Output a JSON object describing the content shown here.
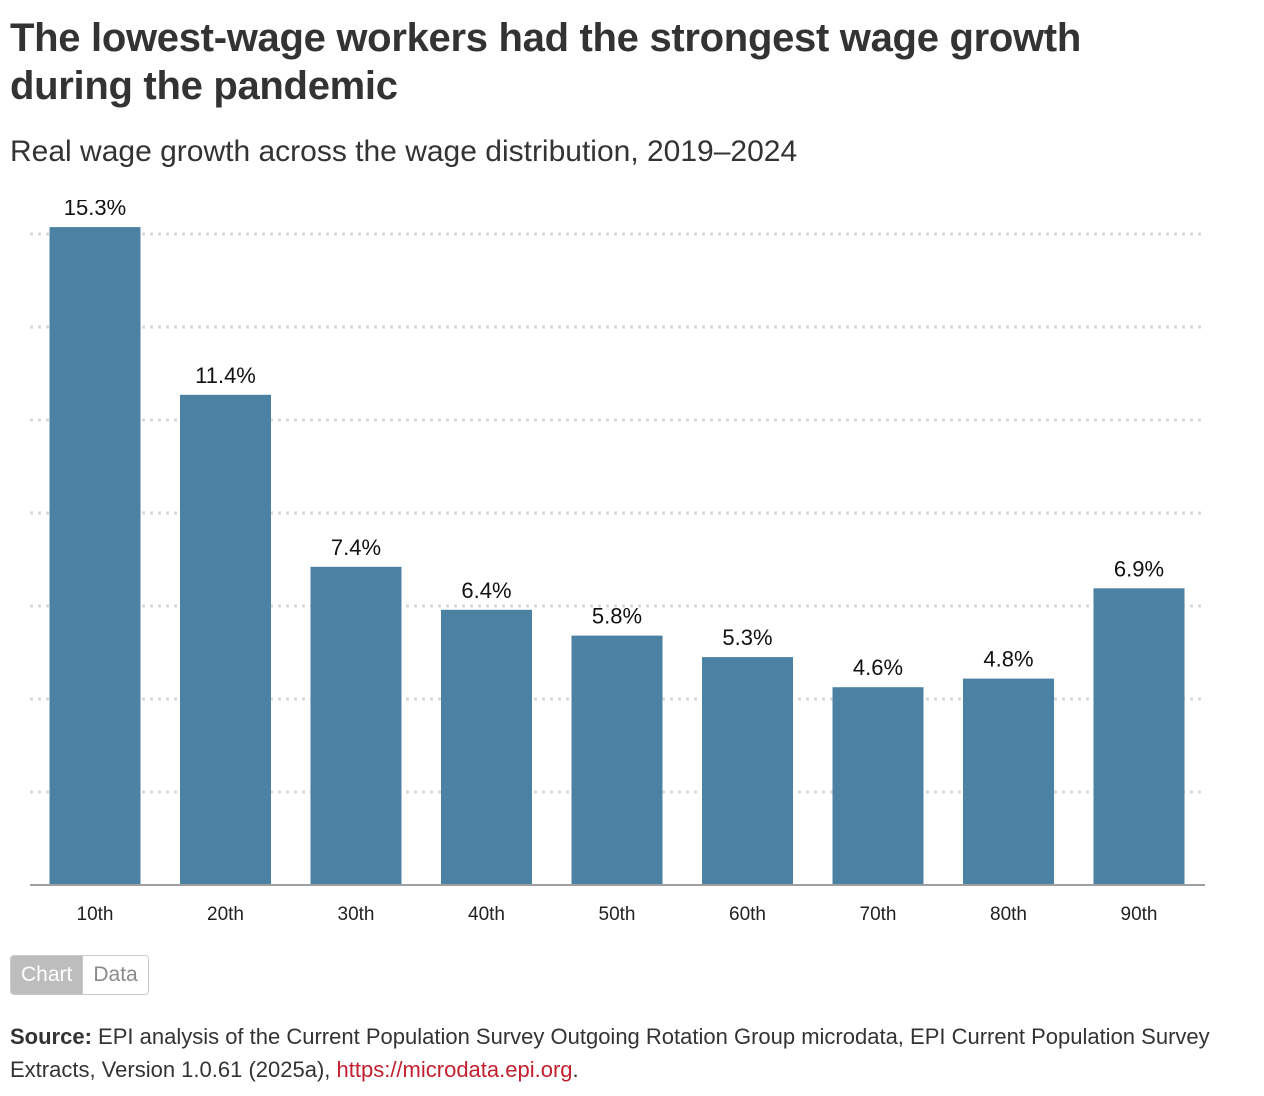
{
  "header": {
    "title": "The lowest-wage workers had the strongest wage growth during the pandemic",
    "subtitle": "Real wage growth across the wage distribution, 2019–2024"
  },
  "colors": {
    "bar": "#4b81a3",
    "gridline": "#d9d9d9",
    "baseline": "#9e9e9e",
    "link": "#c2202e"
  },
  "chart_data": {
    "type": "bar",
    "categories": [
      "10th",
      "20th",
      "30th",
      "40th",
      "50th",
      "60th",
      "70th",
      "80th",
      "90th"
    ],
    "values": [
      15.3,
      11.4,
      7.4,
      6.4,
      5.8,
      5.3,
      4.6,
      4.8,
      6.9
    ],
    "data_labels": [
      "15.3%",
      "11.4%",
      "7.4%",
      "6.4%",
      "5.8%",
      "5.3%",
      "4.6%",
      "4.8%",
      "6.9%"
    ],
    "title": "",
    "xlabel": "",
    "ylabel": "",
    "ylim": [
      0,
      17.5
    ],
    "grid": true,
    "grid_style": "dotted",
    "legend": "none"
  },
  "toggle": {
    "chart_label": "Chart",
    "data_label": "Data"
  },
  "source": {
    "label": "Source:",
    "text": " EPI analysis of the Current Population Survey Outgoing Rotation Group microdata, EPI Current Population Survey Extracts, Version 1.0.61 (2025a), ",
    "link_text": "https://microdata.epi.org",
    "end": "."
  }
}
